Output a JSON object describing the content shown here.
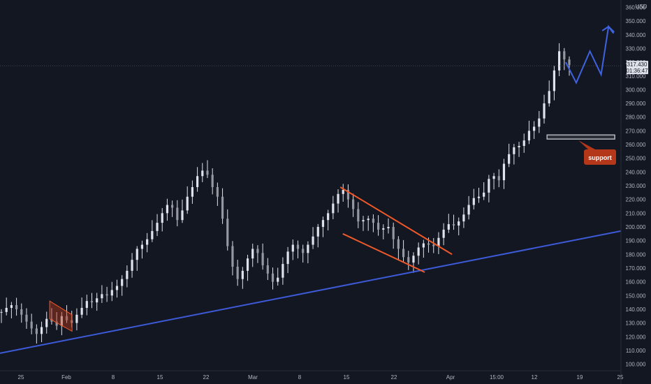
{
  "chart_data": {
    "type": "candlestick",
    "currency": "USD",
    "y_ticks": [
      "100.000",
      "110.000",
      "120.000",
      "130.000",
      "140.000",
      "150.000",
      "160.000",
      "170.000",
      "180.000",
      "190.000",
      "200.000",
      "210.000",
      "220.000",
      "230.000",
      "240.000",
      "250.000",
      "260.000",
      "270.000",
      "280.000",
      "290.000",
      "300.000",
      "310.000",
      "320.000",
      "330.000",
      "340.000",
      "350.000",
      "360.000"
    ],
    "x_ticks": [
      "25",
      "Feb",
      "8",
      "15",
      "22",
      "Mar",
      "8",
      "15",
      "22",
      "Apr",
      "15:00",
      "12",
      "19",
      "25"
    ],
    "ylim": [
      98,
      361
    ],
    "last_price": "317.430",
    "countdown": "01:36:47",
    "annotation": "support",
    "colors": {
      "background": "#131722",
      "candle": "#e0e3eb",
      "trendline": "#3d5bd9",
      "channel": "#f0592a",
      "support_box": "#b2b5be",
      "callout": "#b5371a",
      "projection": "#3f63e0"
    },
    "trendline": [
      {
        "t": 0,
        "price": 108
      },
      {
        "t": 1,
        "price": 197
      }
    ],
    "descending_channel": {
      "upper": [
        {
          "t": 0.548,
          "price": 229
        },
        {
          "t": 0.728,
          "price": 180
        }
      ],
      "lower": [
        {
          "t": 0.552,
          "price": 195
        },
        {
          "t": 0.684,
          "price": 167
        }
      ]
    },
    "early_flag": {
      "upper": [
        {
          "t": 0.08,
          "price": 146
        },
        {
          "t": 0.116,
          "price": 136
        }
      ],
      "lower": [
        {
          "t": 0.08,
          "price": 133
        },
        {
          "t": 0.116,
          "price": 124
        }
      ]
    },
    "support_level": {
      "t_start": 0.881,
      "t_end": 0.99,
      "price_low": 264,
      "price_high": 267
    },
    "projection": [
      {
        "t": 0.911,
        "price": 320
      },
      {
        "t": 0.928,
        "price": 305
      },
      {
        "t": 0.95,
        "price": 328
      },
      {
        "t": 0.968,
        "price": 311
      },
      {
        "t": 0.98,
        "price": 346
      },
      {
        "t": 0.988,
        "price": 341
      }
    ],
    "closes": [
      138,
      141,
      143,
      140,
      136,
      131,
      126,
      122,
      127,
      133,
      131,
      128,
      135,
      132,
      130,
      136,
      141,
      146,
      145,
      148,
      151,
      150,
      154,
      157,
      162,
      168,
      176,
      184,
      187,
      191,
      197,
      203,
      210,
      216,
      214,
      205,
      212,
      222,
      229,
      237,
      241,
      238,
      229,
      222,
      206,
      186,
      171,
      162,
      168,
      177,
      184,
      181,
      172,
      166,
      160,
      163,
      173,
      182,
      187,
      184,
      181,
      187,
      193,
      200,
      205,
      210,
      217,
      224,
      227,
      220,
      213,
      204,
      205,
      206,
      203,
      198,
      199,
      200,
      191,
      184,
      178,
      174,
      179,
      185,
      188,
      187,
      186,
      192,
      198,
      202,
      201,
      204,
      209,
      216,
      221,
      222,
      225,
      235,
      237,
      234,
      246,
      253,
      258,
      259,
      263,
      270,
      273,
      279,
      290,
      299,
      314,
      328,
      322,
      318
    ]
  }
}
